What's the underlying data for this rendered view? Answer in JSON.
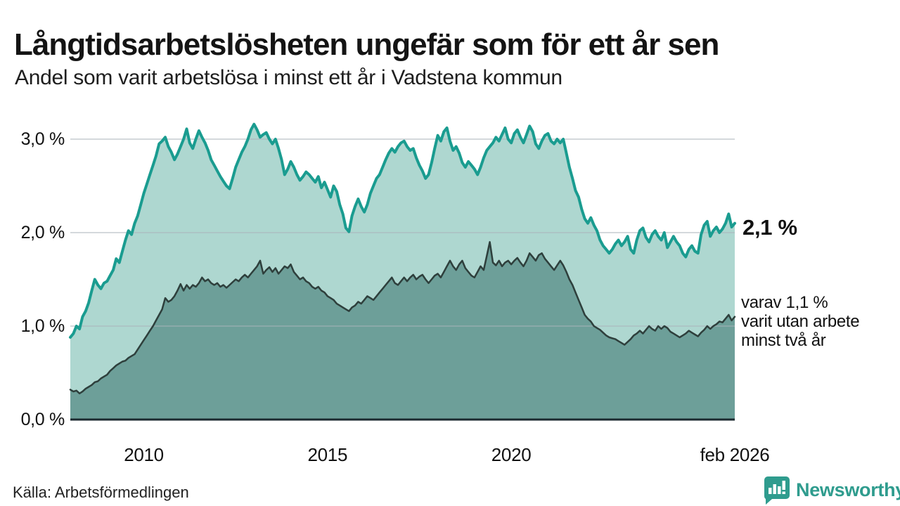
{
  "header": {
    "title": "Långtidsarbetslösheten ungefär som för ett år sen",
    "subtitle": "Andel som varit arbetslösa i minst ett år i Vadstena kommun"
  },
  "annotations": {
    "total_label": "2,1 %",
    "sub_label_lines": [
      "varav 1,1 %",
      "varit utan arbete",
      "minst två år"
    ]
  },
  "footer": {
    "source": "Källa: Arbetsförmedlingen",
    "brand": "Newsworthy"
  },
  "colors": {
    "total_line": "#1a9c90",
    "total_fill": "#aed7d0",
    "two_year_line": "#2e3f3c",
    "two_year_fill": "#6d9f99",
    "gridline": "#aab3ba",
    "baseline": "#1c2a30",
    "brand_teal": "#2f9c8e",
    "text": "#141414"
  },
  "chart_data": {
    "type": "area",
    "title": "Långtidsarbetslösheten ungefär som för ett år sen",
    "subtitle": "Andel som varit arbetslösa i minst ett år i Vadstena kommun",
    "xlabel": "",
    "ylabel": "",
    "ylim": [
      0,
      3.3
    ],
    "grid": "horizontal",
    "legend_position": "none",
    "x_start": 2008.0,
    "x_step_years": 0.0833333,
    "x_ticks": [
      {
        "value": 2010,
        "label": "2010"
      },
      {
        "value": 2015,
        "label": "2015"
      },
      {
        "value": 2020,
        "label": "2020"
      },
      {
        "value": 2026.0833,
        "label": "feb 2026"
      }
    ],
    "y_ticks": [
      {
        "value": 3,
        "label": "3,0 %"
      },
      {
        "value": 2,
        "label": "2,0 %"
      },
      {
        "value": 1,
        "label": "1,0 %"
      },
      {
        "value": 0,
        "label": "0,0 %"
      }
    ],
    "series": [
      {
        "name": "Andel arbetslösa minst ett år",
        "end_value_label": "2,1 %",
        "values": [
          0.88,
          0.92,
          1.0,
          0.97,
          1.1,
          1.16,
          1.25,
          1.38,
          1.5,
          1.44,
          1.4,
          1.46,
          1.48,
          1.54,
          1.6,
          1.72,
          1.68,
          1.8,
          1.92,
          2.02,
          1.98,
          2.1,
          2.18,
          2.3,
          2.42,
          2.52,
          2.62,
          2.72,
          2.82,
          2.95,
          2.98,
          3.02,
          2.92,
          2.86,
          2.78,
          2.84,
          2.92,
          3.0,
          3.11,
          2.96,
          2.9,
          3.0,
          3.09,
          3.02,
          2.96,
          2.88,
          2.78,
          2.72,
          2.66,
          2.6,
          2.55,
          2.5,
          2.47,
          2.58,
          2.7,
          2.78,
          2.86,
          2.92,
          3.0,
          3.1,
          3.16,
          3.1,
          3.02,
          3.05,
          3.07,
          3.0,
          2.95,
          3.0,
          2.9,
          2.78,
          2.62,
          2.68,
          2.76,
          2.7,
          2.62,
          2.56,
          2.6,
          2.65,
          2.62,
          2.58,
          2.54,
          2.6,
          2.48,
          2.54,
          2.46,
          2.38,
          2.5,
          2.44,
          2.3,
          2.2,
          2.05,
          2.01,
          2.18,
          2.28,
          2.36,
          2.28,
          2.22,
          2.3,
          2.42,
          2.5,
          2.58,
          2.62,
          2.7,
          2.78,
          2.85,
          2.9,
          2.86,
          2.92,
          2.96,
          2.98,
          2.92,
          2.88,
          2.9,
          2.8,
          2.72,
          2.66,
          2.58,
          2.62,
          2.75,
          2.9,
          3.04,
          2.98,
          3.08,
          3.12,
          2.98,
          2.88,
          2.92,
          2.85,
          2.75,
          2.7,
          2.76,
          2.72,
          2.68,
          2.62,
          2.7,
          2.8,
          2.88,
          2.92,
          2.96,
          3.02,
          2.98,
          3.05,
          3.12,
          3.0,
          2.96,
          3.06,
          3.1,
          3.02,
          2.96,
          3.05,
          3.14,
          3.08,
          2.95,
          2.9,
          2.98,
          3.04,
          3.06,
          2.98,
          2.95,
          3.0,
          2.96,
          3.0,
          2.85,
          2.7,
          2.58,
          2.45,
          2.38,
          2.25,
          2.15,
          2.1,
          2.16,
          2.08,
          2.02,
          1.92,
          1.86,
          1.82,
          1.78,
          1.82,
          1.88,
          1.92,
          1.86,
          1.9,
          1.96,
          1.82,
          1.78,
          1.92,
          2.02,
          2.05,
          1.95,
          1.9,
          1.98,
          2.02,
          1.96,
          1.92,
          2.0,
          1.84,
          1.9,
          1.96,
          1.9,
          1.86,
          1.78,
          1.74,
          1.82,
          1.86,
          1.8,
          1.78,
          1.98,
          2.08,
          2.12,
          1.96,
          2.02,
          2.06,
          2.0,
          2.04,
          2.1,
          2.2,
          2.06,
          2.1
        ]
      },
      {
        "name": "varav utan arbete minst två år",
        "end_value_label": "1,1 %",
        "values": [
          0.32,
          0.3,
          0.31,
          0.28,
          0.3,
          0.33,
          0.35,
          0.37,
          0.4,
          0.41,
          0.44,
          0.46,
          0.48,
          0.52,
          0.55,
          0.58,
          0.6,
          0.62,
          0.63,
          0.66,
          0.68,
          0.7,
          0.75,
          0.8,
          0.85,
          0.9,
          0.95,
          1.0,
          1.06,
          1.12,
          1.18,
          1.3,
          1.26,
          1.28,
          1.32,
          1.38,
          1.45,
          1.38,
          1.44,
          1.4,
          1.44,
          1.42,
          1.46,
          1.52,
          1.48,
          1.5,
          1.46,
          1.44,
          1.46,
          1.42,
          1.44,
          1.41,
          1.44,
          1.47,
          1.5,
          1.48,
          1.52,
          1.55,
          1.52,
          1.56,
          1.6,
          1.64,
          1.7,
          1.56,
          1.6,
          1.63,
          1.58,
          1.62,
          1.56,
          1.6,
          1.64,
          1.62,
          1.66,
          1.58,
          1.54,
          1.5,
          1.52,
          1.48,
          1.46,
          1.42,
          1.4,
          1.42,
          1.38,
          1.36,
          1.32,
          1.3,
          1.28,
          1.24,
          1.22,
          1.2,
          1.18,
          1.16,
          1.2,
          1.22,
          1.26,
          1.24,
          1.28,
          1.32,
          1.3,
          1.28,
          1.32,
          1.36,
          1.4,
          1.44,
          1.48,
          1.52,
          1.46,
          1.44,
          1.48,
          1.52,
          1.48,
          1.52,
          1.55,
          1.5,
          1.53,
          1.55,
          1.5,
          1.46,
          1.5,
          1.54,
          1.56,
          1.52,
          1.58,
          1.64,
          1.7,
          1.64,
          1.6,
          1.66,
          1.7,
          1.62,
          1.58,
          1.54,
          1.52,
          1.58,
          1.64,
          1.6,
          1.75,
          1.9,
          1.68,
          1.65,
          1.7,
          1.64,
          1.68,
          1.7,
          1.66,
          1.7,
          1.73,
          1.68,
          1.64,
          1.7,
          1.78,
          1.74,
          1.7,
          1.76,
          1.78,
          1.72,
          1.68,
          1.64,
          1.6,
          1.65,
          1.7,
          1.65,
          1.58,
          1.5,
          1.44,
          1.36,
          1.28,
          1.2,
          1.12,
          1.08,
          1.05,
          1.0,
          0.98,
          0.96,
          0.93,
          0.9,
          0.88,
          0.87,
          0.86,
          0.84,
          0.82,
          0.8,
          0.83,
          0.86,
          0.9,
          0.92,
          0.95,
          0.92,
          0.96,
          1.0,
          0.97,
          0.95,
          1.0,
          0.97,
          1.0,
          0.98,
          0.94,
          0.92,
          0.9,
          0.88,
          0.9,
          0.92,
          0.95,
          0.93,
          0.91,
          0.89,
          0.93,
          0.96,
          1.0,
          0.97,
          1.0,
          1.02,
          1.05,
          1.04,
          1.08,
          1.12,
          1.06,
          1.1
        ]
      }
    ]
  }
}
